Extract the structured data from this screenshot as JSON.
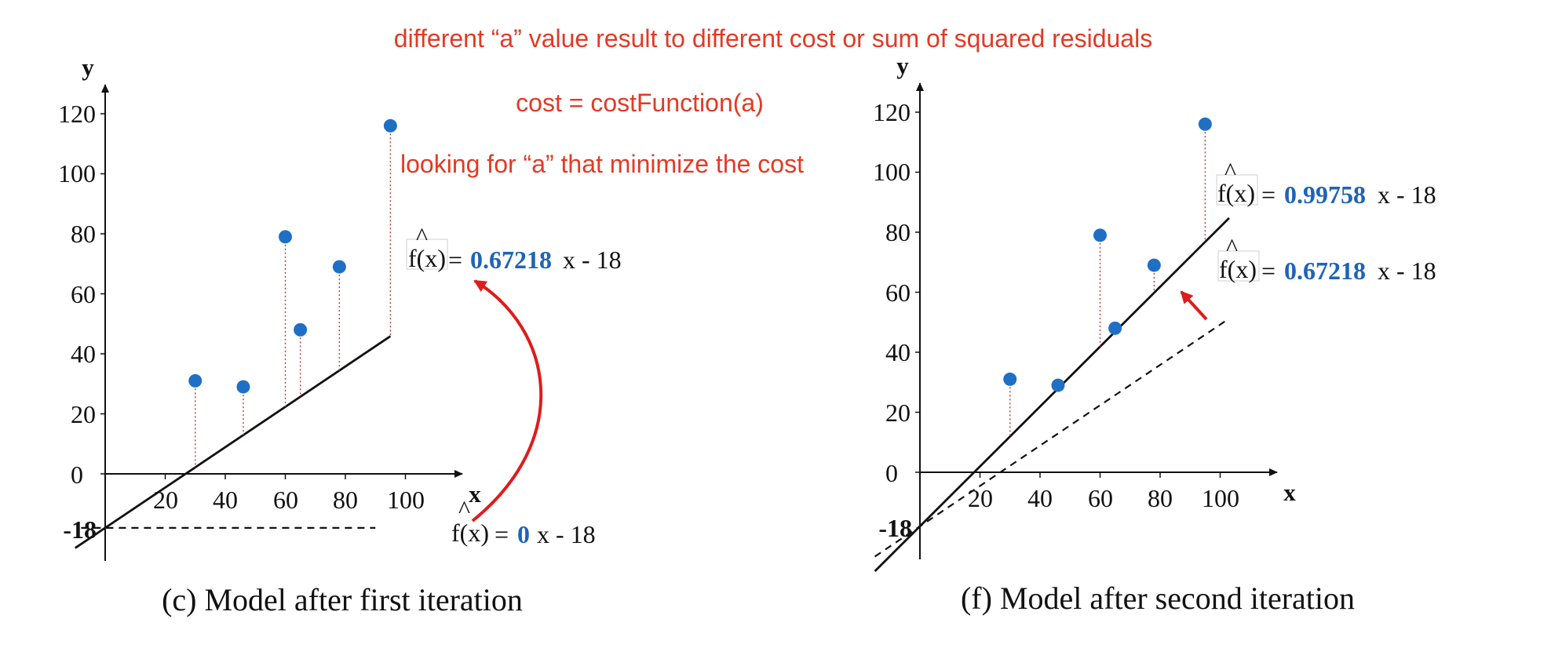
{
  "annotations": {
    "line1": "different “a” value result to different cost or sum of squared residuals",
    "line2": "cost = costFunction(a)",
    "line3": "looking for “a” that minimize the cost"
  },
  "colors": {
    "annotation": "#e23a24",
    "points": "#1f6fc5",
    "coef": "#1e63b8",
    "residual": "#c0392b",
    "arrow": "#e01b1b"
  },
  "chart_data": [
    {
      "type": "scatter",
      "caption": "(c) Model after first iteration",
      "xlabel": "x",
      "ylabel": "y",
      "x_ticks": [
        "20",
        "40",
        "60",
        "80",
        "100"
      ],
      "y_ticks": [
        "0",
        "20",
        "40",
        "60",
        "80",
        "100",
        "120"
      ],
      "intercept_label": "-18",
      "xlim": [
        0,
        120
      ],
      "ylim": [
        -18,
        120
      ],
      "points": [
        {
          "x": 30,
          "y": 31
        },
        {
          "x": 46,
          "y": 29
        },
        {
          "x": 60,
          "y": 79
        },
        {
          "x": 65,
          "y": 48
        },
        {
          "x": 78,
          "y": 69
        },
        {
          "x": 95,
          "y": 116
        }
      ],
      "lines": [
        {
          "slope": 0.67218,
          "intercept": -18,
          "style": "solid",
          "equation": {
            "prefix": "f(x)",
            "eq": "=",
            "coef": "0.67218",
            "suffix": "x - 18"
          }
        },
        {
          "slope": 0,
          "intercept": -18,
          "style": "dashed",
          "equation": {
            "prefix": "f(x)",
            "eq": "=",
            "coef": "0",
            "suffix": "x - 18"
          }
        }
      ]
    },
    {
      "type": "scatter",
      "caption": "(f) Model after second iteration",
      "xlabel": "x",
      "ylabel": "y",
      "x_ticks": [
        "20",
        "40",
        "60",
        "80",
        "100"
      ],
      "y_ticks": [
        "0",
        "20",
        "40",
        "60",
        "80",
        "100",
        "120"
      ],
      "intercept_label": "-18",
      "xlim": [
        0,
        120
      ],
      "ylim": [
        -18,
        120
      ],
      "points": [
        {
          "x": 30,
          "y": 31
        },
        {
          "x": 46,
          "y": 29
        },
        {
          "x": 60,
          "y": 79
        },
        {
          "x": 65,
          "y": 48
        },
        {
          "x": 78,
          "y": 69
        },
        {
          "x": 95,
          "y": 116
        }
      ],
      "lines": [
        {
          "slope": 0.99758,
          "intercept": -18,
          "style": "solid",
          "equation": {
            "prefix": "f(x)",
            "eq": "=",
            "coef": "0.99758",
            "suffix": "x - 18"
          }
        },
        {
          "slope": 0.67218,
          "intercept": -18,
          "style": "dashed",
          "equation": {
            "prefix": "f(x)",
            "eq": "=",
            "coef": "0.67218",
            "suffix": "x - 18"
          }
        }
      ]
    }
  ]
}
